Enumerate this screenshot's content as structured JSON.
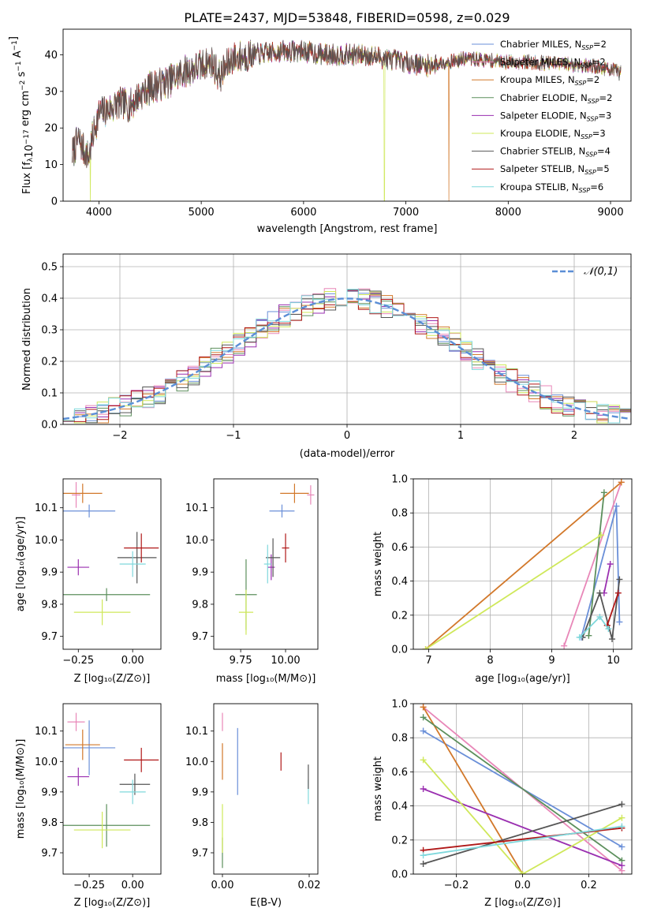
{
  "title": "PLATE=2437, MJD=53848, FIBERID=0598, z=0.029",
  "models": [
    {
      "label": "Chabrier MILES",
      "nssp": "2",
      "color": "#6a8fd8"
    },
    {
      "label": "Salpeter MILES",
      "nssp": "2",
      "color": "#e887b8"
    },
    {
      "label": "Kroupa MILES",
      "nssp": "2",
      "color": "#d2782a"
    },
    {
      "label": "Chabrier ELODIE",
      "nssp": "2",
      "color": "#5c8f5c"
    },
    {
      "label": "Salpeter ELODIE",
      "nssp": "3",
      "color": "#9a2fb0"
    },
    {
      "label": "Kroupa ELODIE",
      "nssp": "3",
      "color": "#cfe85a"
    },
    {
      "label": "Chabrier STELIB",
      "nssp": "4",
      "color": "#555555"
    },
    {
      "label": "Salpeter STELIB",
      "nssp": "5",
      "color": "#b01818"
    },
    {
      "label": "Kroupa STELIB",
      "nssp": "6",
      "color": "#7fd8dc"
    }
  ],
  "chart_data": [
    {
      "type": "line",
      "name": "spectrum",
      "xlabel": "wavelength [Angstrom, rest frame]",
      "ylabel": "Flux [f_λ 10^-17 erg cm^-2 s^-1 A^-1]",
      "xlim": [
        3650,
        9200
      ],
      "ylim": [
        0,
        47
      ],
      "xticks": [
        4000,
        5000,
        6000,
        7000,
        8000,
        9000
      ],
      "yticks": [
        0,
        10,
        20,
        30,
        40
      ],
      "spectrum_anchors": [
        [
          3740,
          13
        ],
        [
          3800,
          17
        ],
        [
          3850,
          14
        ],
        [
          3900,
          12
        ],
        [
          3950,
          19
        ],
        [
          4000,
          24
        ],
        [
          4100,
          25
        ],
        [
          4200,
          27
        ],
        [
          4300,
          26
        ],
        [
          4400,
          29
        ],
        [
          4500,
          31
        ],
        [
          4600,
          32
        ],
        [
          4700,
          33
        ],
        [
          4800,
          35
        ],
        [
          4900,
          36
        ],
        [
          5000,
          37
        ],
        [
          5100,
          38
        ],
        [
          5180,
          34
        ],
        [
          5300,
          39
        ],
        [
          5500,
          40
        ],
        [
          5800,
          41
        ],
        [
          6000,
          41
        ],
        [
          6200,
          40
        ],
        [
          6400,
          40
        ],
        [
          6600,
          40
        ],
        [
          6800,
          39
        ],
        [
          7000,
          38
        ],
        [
          7200,
          37
        ],
        [
          7400,
          38
        ],
        [
          7600,
          39
        ],
        [
          7800,
          38.5
        ],
        [
          8000,
          38
        ],
        [
          8200,
          38
        ],
        [
          8500,
          37.5
        ],
        [
          8800,
          37
        ],
        [
          9000,
          36
        ],
        [
          9100,
          35
        ]
      ],
      "dropouts": [
        {
          "model": "Kroupa ELODIE",
          "wave": 3915
        },
        {
          "model": "Kroupa ELODIE",
          "wave": 6790
        },
        {
          "model": "Kroupa MILES",
          "wave": 7420
        }
      ],
      "legend": "top-right"
    },
    {
      "type": "histogram",
      "name": "residuals",
      "xlabel": "(data-model)/error",
      "ylabel": "Normed distribution",
      "xlim": [
        -2.5,
        2.5
      ],
      "ylim": [
        0,
        0.54
      ],
      "xticks": [
        -2,
        -1,
        0,
        1,
        2
      ],
      "yticks": [
        0,
        0.1,
        0.2,
        0.3,
        0.4,
        0.5
      ],
      "bin_width": 0.1,
      "reference_curve": "𝒩(0,1)",
      "legend": "top-right"
    },
    {
      "type": "scatter",
      "name": "age-vs-Z",
      "xlabel": "Z [log10(Z/Z⊙)]",
      "ylabel": "age [log10(age/yr)]",
      "xlim": [
        -0.32,
        0.13
      ],
      "ylim": [
        9.66,
        10.19
      ],
      "xticks": [
        -0.25,
        -0.2,
        -0.1,
        0.0
      ],
      "xticklabels": [
        "−0.25",
        "",
        "",
        ""
      ],
      "yticks": [
        9.7,
        9.8,
        9.9,
        10.0,
        10.1
      ],
      "points": [
        {
          "model": "Chabrier MILES",
          "x": -0.2,
          "y": 10.09,
          "xerr": 0.12,
          "yerr": 0.02
        },
        {
          "model": "Salpeter MILES",
          "x": -0.26,
          "y": 10.14,
          "xerr": 0.02,
          "yerr": 0.04
        },
        {
          "model": "Kroupa MILES",
          "x": -0.23,
          "y": 10.145,
          "xerr": 0.09,
          "yerr": 0.03
        },
        {
          "model": "Chabrier ELODIE",
          "x": -0.12,
          "y": 9.83,
          "xerr": 0.2,
          "yerr": 0.02
        },
        {
          "model": "Salpeter ELODIE",
          "x": -0.25,
          "y": 9.915,
          "xerr": 0.05,
          "yerr": 0.025
        },
        {
          "model": "Kroupa ELODIE",
          "x": -0.14,
          "y": 9.775,
          "xerr": 0.13,
          "yerr": 0.04
        },
        {
          "model": "Chabrier STELIB",
          "x": 0.02,
          "y": 9.945,
          "xerr": 0.09,
          "yerr": 0.08
        },
        {
          "model": "Salpeter STELIB",
          "x": 0.04,
          "y": 9.975,
          "xerr": 0.08,
          "yerr": 0.045
        },
        {
          "model": "Kroupa STELIB",
          "x": 0.0,
          "y": 9.925,
          "xerr": 0.06,
          "yerr": 0.04
        }
      ]
    },
    {
      "type": "scatter",
      "name": "age-vs-mass",
      "xlabel": "mass [log10(M/M⊙)]",
      "ylabel": "",
      "xlim": [
        9.6,
        10.18
      ],
      "ylim": [
        9.66,
        10.19
      ],
      "xticks": [
        9.75,
        10.0
      ],
      "xticklabels": [
        "9.75",
        "10.00"
      ],
      "yticks": [
        9.7,
        9.8,
        9.9,
        10.0,
        10.1
      ],
      "points": [
        {
          "model": "Chabrier MILES",
          "x": 9.98,
          "y": 10.09,
          "xerr": 0.07,
          "yerr": 0.02
        },
        {
          "model": "Salpeter MILES",
          "x": 10.14,
          "y": 10.14,
          "xerr": 0.02,
          "yerr": 0.03
        },
        {
          "model": "Kroupa MILES",
          "x": 10.05,
          "y": 10.145,
          "xerr": 0.08,
          "yerr": 0.03
        },
        {
          "model": "Chabrier ELODIE",
          "x": 9.78,
          "y": 9.83,
          "xerr": 0.06,
          "yerr": 0.11
        },
        {
          "model": "Salpeter ELODIE",
          "x": 9.92,
          "y": 9.915,
          "xerr": 0.02,
          "yerr": 0.04
        },
        {
          "model": "Kroupa ELODIE",
          "x": 9.78,
          "y": 9.775,
          "xerr": 0.04,
          "yerr": 0.07
        },
        {
          "model": "Chabrier STELIB",
          "x": 9.93,
          "y": 9.945,
          "xerr": 0.04,
          "yerr": 0.06
        },
        {
          "model": "Salpeter STELIB",
          "x": 10.0,
          "y": 9.975,
          "xerr": 0.02,
          "yerr": 0.045
        },
        {
          "model": "Kroupa STELIB",
          "x": 9.9,
          "y": 9.925,
          "xerr": 0.02,
          "yerr": 0.06
        }
      ]
    },
    {
      "type": "line",
      "name": "weight-vs-age",
      "xlabel": "age [log10(age/yr)]",
      "ylabel": "mass weight",
      "xlim": [
        6.75,
        10.3
      ],
      "ylim": [
        0,
        1
      ],
      "xticks": [
        7,
        8,
        9,
        10
      ],
      "yticks": [
        0,
        0.2,
        0.4,
        0.6,
        0.8,
        1.0
      ],
      "series": [
        {
          "model": "Chabrier MILES",
          "x": [
            9.48,
            10.05,
            10.1
          ],
          "y": [
            0.07,
            0.84,
            0.16
          ]
        },
        {
          "model": "Salpeter MILES",
          "x": [
            9.2,
            10.13
          ],
          "y": [
            0.02,
            0.98
          ]
        },
        {
          "model": "Kroupa MILES",
          "x": [
            6.95,
            10.13
          ],
          "y": [
            0.0,
            0.98
          ]
        },
        {
          "model": "Chabrier ELODIE",
          "x": [
            9.6,
            9.85
          ],
          "y": [
            0.08,
            0.92
          ]
        },
        {
          "model": "Salpeter ELODIE",
          "x": [
            9.85,
            9.95
          ],
          "y": [
            0.33,
            0.5
          ]
        },
        {
          "model": "Kroupa ELODIE",
          "x": [
            6.95,
            9.8
          ],
          "y": [
            0.0,
            0.67
          ]
        },
        {
          "model": "Chabrier STELIB",
          "x": [
            9.5,
            9.78,
            9.98,
            10.1
          ],
          "y": [
            0.07,
            0.33,
            0.06,
            0.41
          ]
        },
        {
          "model": "Salpeter STELIB",
          "x": [
            9.9,
            10.08
          ],
          "y": [
            0.14,
            0.33
          ]
        },
        {
          "model": "Kroupa STELIB",
          "x": [
            9.45,
            9.78,
            9.92
          ],
          "y": [
            0.07,
            0.19,
            0.12
          ]
        }
      ]
    },
    {
      "type": "scatter",
      "name": "mass-vs-Z",
      "xlabel": "Z [log10(Z/Z⊙)]",
      "ylabel": "mass [log10(M/M⊙)]",
      "xlim": [
        -0.32,
        0.13
      ],
      "ylim": [
        9.63,
        10.19
      ],
      "xticks": [
        -0.25,
        -0.2,
        -0.1,
        0.0
      ],
      "xticklabels": [
        "−0.25",
        "",
        "",
        ""
      ],
      "yticks": [
        9.7,
        9.8,
        9.9,
        10.0,
        10.1
      ],
      "points": [
        {
          "model": "Chabrier MILES",
          "x": -0.2,
          "y": 10.045,
          "xerr": 0.12,
          "yerr": 0.09
        },
        {
          "model": "Salpeter MILES",
          "x": -0.26,
          "y": 10.13,
          "xerr": 0.04,
          "yerr": 0.03
        },
        {
          "model": "Kroupa MILES",
          "x": -0.23,
          "y": 10.055,
          "xerr": 0.08,
          "yerr": 0.05
        },
        {
          "model": "Chabrier ELODIE",
          "x": -0.12,
          "y": 9.79,
          "xerr": 0.2,
          "yerr": 0.07
        },
        {
          "model": "Salpeter ELODIE",
          "x": -0.25,
          "y": 9.95,
          "xerr": 0.05,
          "yerr": 0.03
        },
        {
          "model": "Kroupa ELODIE",
          "x": -0.14,
          "y": 9.775,
          "xerr": 0.13,
          "yerr": 0.06
        },
        {
          "model": "Chabrier STELIB",
          "x": 0.01,
          "y": 9.925,
          "xerr": 0.07,
          "yerr": 0.035
        },
        {
          "model": "Salpeter STELIB",
          "x": 0.04,
          "y": 10.005,
          "xerr": 0.08,
          "yerr": 0.04
        },
        {
          "model": "Kroupa STELIB",
          "x": 0.0,
          "y": 9.9,
          "xerr": 0.06,
          "yerr": 0.04
        }
      ]
    },
    {
      "type": "scatter",
      "name": "mass-vs-EBV",
      "xlabel": "E(B-V)",
      "ylabel": "",
      "xlim": [
        -0.002,
        0.022
      ],
      "ylim": [
        9.63,
        10.19
      ],
      "xticks": [
        0.0,
        0.02
      ],
      "xticklabels": [
        "0.00",
        "0.02"
      ],
      "yticks": [
        9.7,
        9.8,
        9.9,
        10.0,
        10.1
      ],
      "points": [
        {
          "model": "Chabrier MILES",
          "x": 0.0035,
          "y": 10.0,
          "xerr": 0,
          "yerr": 0.11
        },
        {
          "model": "Salpeter MILES",
          "x": 0.0,
          "y": 10.13,
          "xerr": 0,
          "yerr": 0.03
        },
        {
          "model": "Kroupa MILES",
          "x": 0.0,
          "y": 10.0,
          "xerr": 0,
          "yerr": 0.06
        },
        {
          "model": "Chabrier ELODIE",
          "x": 0.0,
          "y": 9.7,
          "xerr": 0,
          "yerr": 0.05
        },
        {
          "model": "Kroupa ELODIE",
          "x": 0.0,
          "y": 9.78,
          "xerr": 0,
          "yerr": 0.08
        },
        {
          "model": "Salpeter STELIB",
          "x": 0.0135,
          "y": 10.0,
          "xerr": 0,
          "yerr": 0.03
        },
        {
          "model": "Kroupa STELIB",
          "x": 0.0198,
          "y": 9.9,
          "xerr": 0,
          "yerr": 0.04
        },
        {
          "model": "Chabrier STELIB",
          "x": 0.0198,
          "y": 9.95,
          "xerr": 0,
          "yerr": 0.04
        }
      ]
    },
    {
      "type": "line",
      "name": "weight-vs-Z",
      "xlabel": "Z [log10(Z/Z⊙)]",
      "ylabel": "mass weight",
      "xlim": [
        -0.33,
        0.33
      ],
      "ylim": [
        0,
        1
      ],
      "xticks": [
        -0.2,
        0.0,
        0.2
      ],
      "xticklabels": [
        "−0.2",
        "0.0",
        "0.2"
      ],
      "yticks": [
        0,
        0.2,
        0.4,
        0.6,
        0.8,
        1.0
      ],
      "series": [
        {
          "model": "Chabrier MILES",
          "x": [
            -0.3,
            0.3
          ],
          "y": [
            0.84,
            0.16
          ]
        },
        {
          "model": "Salpeter MILES",
          "x": [
            -0.3,
            0.3
          ],
          "y": [
            0.98,
            0.02
          ]
        },
        {
          "model": "Kroupa MILES",
          "x": [
            -0.3,
            0.0
          ],
          "y": [
            0.98,
            0.0
          ]
        },
        {
          "model": "Chabrier ELODIE",
          "x": [
            -0.3,
            0.3
          ],
          "y": [
            0.92,
            0.08
          ]
        },
        {
          "model": "Salpeter ELODIE",
          "x": [
            -0.3,
            0.3
          ],
          "y": [
            0.5,
            0.05
          ]
        },
        {
          "model": "Kroupa ELODIE",
          "x": [
            -0.3,
            0.0,
            0.3
          ],
          "y": [
            0.67,
            0.0,
            0.33
          ]
        },
        {
          "model": "Chabrier STELIB",
          "x": [
            -0.3,
            0.3
          ],
          "y": [
            0.06,
            0.41
          ]
        },
        {
          "model": "Salpeter STELIB",
          "x": [
            -0.3,
            0.3
          ],
          "y": [
            0.14,
            0.27
          ]
        },
        {
          "model": "Kroupa STELIB",
          "x": [
            -0.3,
            0.3
          ],
          "y": [
            0.11,
            0.28
          ]
        }
      ]
    }
  ]
}
